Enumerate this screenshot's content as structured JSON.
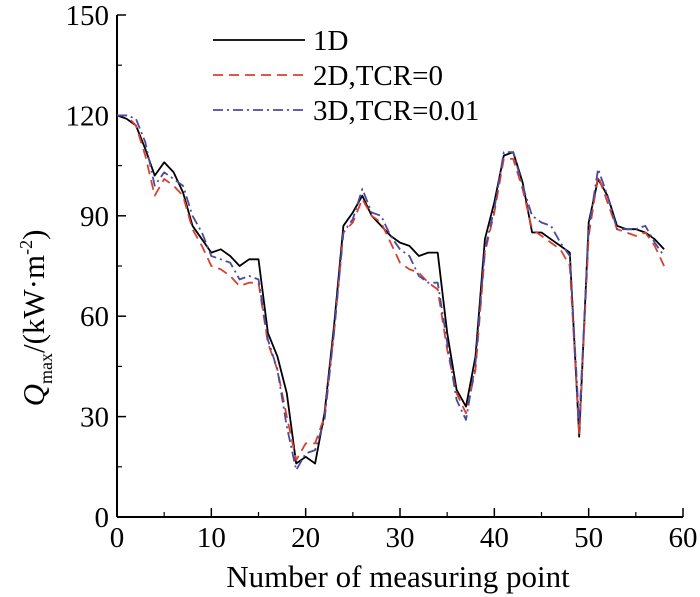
{
  "chart_data": {
    "type": "line",
    "xlabel": "Number of measuring point",
    "ylabel_main": "Q",
    "ylabel_sub": "max",
    "ylabel_rest": "/(kW·m",
    "ylabel_sup": "-2",
    "ylabel_close": ")",
    "xlim": [
      0,
      60
    ],
    "ylim": [
      0,
      150
    ],
    "xticks": [
      0,
      10,
      20,
      30,
      40,
      50,
      60
    ],
    "yticks": [
      0,
      30,
      60,
      90,
      120,
      150
    ],
    "grid": false,
    "legend_position": "top-center",
    "series": [
      {
        "name": "1D",
        "color": "#000000",
        "dash": "solid",
        "x": [
          0,
          1,
          2,
          3,
          4,
          5,
          6,
          7,
          8,
          9,
          10,
          11,
          12,
          13,
          14,
          15,
          16,
          17,
          18,
          19,
          20,
          21,
          22,
          23,
          24,
          25,
          26,
          27,
          28,
          29,
          30,
          31,
          32,
          33,
          34,
          35,
          36,
          37,
          38,
          39,
          40,
          41,
          42,
          43,
          44,
          45,
          46,
          47,
          48,
          49,
          50,
          51,
          52,
          53,
          54,
          55,
          56,
          57,
          58
        ],
        "values": [
          120,
          119,
          117,
          110,
          102,
          106,
          103,
          97,
          87,
          83,
          79,
          80,
          78,
          75,
          77,
          77,
          55,
          48,
          37,
          16,
          18,
          16,
          31,
          57,
          87,
          91,
          96,
          90,
          87,
          84,
          82,
          81,
          78,
          79,
          79,
          55,
          38,
          33,
          48,
          83,
          94,
          108,
          109,
          100,
          85,
          85,
          83,
          81,
          79,
          24,
          88,
          101,
          96,
          87,
          86,
          86,
          85,
          83,
          80
        ]
      },
      {
        "name": "2D,TCR=0",
        "color": "#d94030",
        "dash": "dashed",
        "x": [
          0,
          1,
          2,
          3,
          4,
          5,
          6,
          7,
          8,
          9,
          10,
          11,
          12,
          13,
          14,
          15,
          16,
          17,
          18,
          19,
          20,
          21,
          22,
          23,
          24,
          25,
          26,
          27,
          28,
          29,
          30,
          31,
          32,
          33,
          34,
          35,
          36,
          37,
          38,
          39,
          40,
          41,
          42,
          43,
          44,
          45,
          46,
          47,
          48,
          49,
          50,
          51,
          52,
          53,
          54,
          55,
          56,
          57,
          58
        ],
        "values": [
          120,
          120,
          117,
          108,
          96,
          101,
          99,
          96,
          86,
          81,
          75,
          74,
          72,
          69,
          70,
          70,
          52,
          44,
          30,
          17,
          22,
          22,
          30,
          55,
          85,
          88,
          95,
          90,
          88,
          82,
          76,
          74,
          73,
          70,
          68,
          50,
          37,
          31,
          44,
          79,
          91,
          107,
          107,
          98,
          86,
          84,
          82,
          80,
          75,
          25,
          84,
          102,
          94,
          86,
          85,
          84,
          85,
          81,
          75
        ]
      },
      {
        "name": "3D,TCR=0.01",
        "color": "#4a4aa0",
        "dash": "dashdot",
        "x": [
          0,
          1,
          2,
          3,
          4,
          5,
          6,
          7,
          8,
          9,
          10,
          11,
          12,
          13,
          14,
          15,
          16,
          17,
          18,
          19,
          20,
          21,
          22,
          23,
          24,
          25,
          26,
          27,
          28,
          29,
          30,
          31,
          32,
          33,
          34,
          35,
          36,
          37,
          38,
          39,
          40,
          41,
          42,
          43,
          44,
          45,
          46,
          47,
          48,
          49,
          50,
          51,
          52,
          53,
          54,
          55,
          56,
          57,
          58
        ],
        "values": [
          120,
          120,
          119,
          112,
          99,
          103,
          101,
          99,
          90,
          85,
          78,
          77,
          76,
          71,
          72,
          71,
          53,
          44,
          27,
          14,
          19,
          20,
          29,
          55,
          85,
          89,
          98,
          91,
          90,
          84,
          80,
          78,
          72,
          70,
          70,
          52,
          35,
          29,
          46,
          80,
          92,
          109,
          109,
          99,
          90,
          88,
          87,
          82,
          78,
          28,
          86,
          104,
          96,
          86,
          86,
          86,
          87,
          82,
          78
        ]
      }
    ]
  }
}
